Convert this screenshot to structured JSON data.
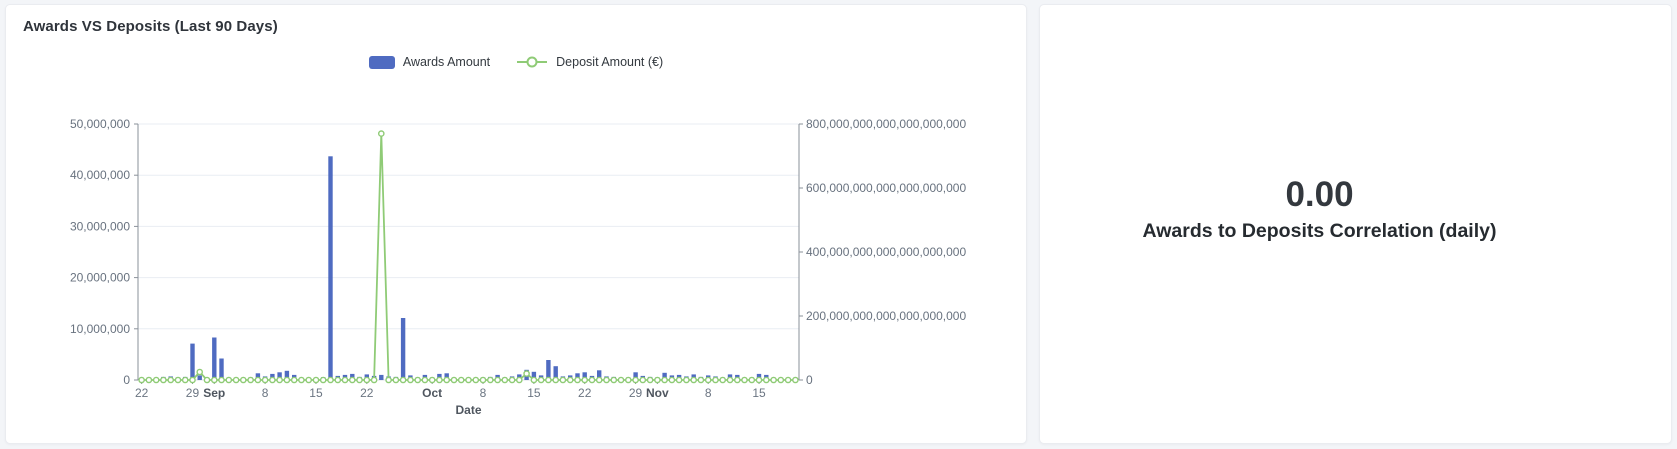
{
  "left_card": {
    "title": "Awards VS Deposits (Last 90 Days)",
    "legend": [
      {
        "label": "Awards Amount",
        "type": "bar",
        "color": "#4f6bc1"
      },
      {
        "label": "Deposit Amount (€)",
        "type": "line",
        "color": "#8fcb76"
      }
    ]
  },
  "right_card": {
    "value": "0.00",
    "label": "Awards to Deposits Correlation (daily)"
  },
  "chart_data": {
    "type": "combo-bar-line-dual-axis",
    "title": "Awards VS Deposits (Last 90 Days)",
    "xlabel": "Date",
    "grid": true,
    "legend_position": "top-center",
    "dates": [
      "Aug 22",
      "Aug 23",
      "Aug 24",
      "Aug 25",
      "Aug 26",
      "Aug 27",
      "Aug 28",
      "Aug 29",
      "Aug 30",
      "Aug 31",
      "Sep 1",
      "Sep 2",
      "Sep 3",
      "Sep 4",
      "Sep 5",
      "Sep 6",
      "Sep 7",
      "Sep 8",
      "Sep 9",
      "Sep 10",
      "Sep 11",
      "Sep 12",
      "Sep 13",
      "Sep 14",
      "Sep 15",
      "Sep 16",
      "Sep 17",
      "Sep 18",
      "Sep 19",
      "Sep 20",
      "Sep 21",
      "Sep 22",
      "Sep 23",
      "Sep 24",
      "Sep 25",
      "Sep 26",
      "Sep 27",
      "Sep 28",
      "Sep 29",
      "Sep 30",
      "Oct 1",
      "Oct 2",
      "Oct 3",
      "Oct 4",
      "Oct 5",
      "Oct 6",
      "Oct 7",
      "Oct 8",
      "Oct 9",
      "Oct 10",
      "Oct 11",
      "Oct 12",
      "Oct 13",
      "Oct 14",
      "Oct 15",
      "Oct 16",
      "Oct 17",
      "Oct 18",
      "Oct 19",
      "Oct 20",
      "Oct 21",
      "Oct 22",
      "Oct 23",
      "Oct 24",
      "Oct 25",
      "Oct 26",
      "Oct 27",
      "Oct 28",
      "Oct 29",
      "Oct 30",
      "Oct 31",
      "Nov 1",
      "Nov 2",
      "Nov 3",
      "Nov 4",
      "Nov 5",
      "Nov 6",
      "Nov 7",
      "Nov 8",
      "Nov 9",
      "Nov 10",
      "Nov 11",
      "Nov 12",
      "Nov 13",
      "Nov 14",
      "Nov 15",
      "Nov 16",
      "Nov 17",
      "Nov 18",
      "Nov 19",
      "Nov 20"
    ],
    "series": [
      {
        "name": "Awards Amount",
        "type": "bar",
        "axis": "left",
        "color": "#4f6bc1",
        "values": [
          400000,
          500000,
          300000,
          600000,
          700000,
          500000,
          600000,
          7100000,
          900000,
          400000,
          8300000,
          4200000,
          400000,
          300000,
          250000,
          500000,
          1300000,
          700000,
          1200000,
          1500000,
          1800000,
          1000000,
          400000,
          300000,
          350000,
          550000,
          43700000,
          800000,
          1000000,
          1200000,
          600000,
          1100000,
          800000,
          1000000,
          700000,
          600000,
          12100000,
          900000,
          500000,
          1000000,
          500000,
          1200000,
          1300000,
          400000,
          350000,
          300000,
          450000,
          500000,
          600000,
          1000000,
          500000,
          700000,
          1100000,
          2000000,
          1600000,
          900000,
          3900000,
          2700000,
          700000,
          900000,
          1300000,
          1500000,
          800000,
          1900000,
          700000,
          600000,
          400000,
          500000,
          1500000,
          800000,
          600000,
          500000,
          1400000,
          900000,
          1000000,
          700000,
          1100000,
          600000,
          900000,
          700000,
          500000,
          1100000,
          1000000,
          400000,
          500000,
          1200000,
          1000000,
          400000,
          300000,
          350000,
          300000
        ]
      },
      {
        "name": "Deposit Amount (€)",
        "type": "line",
        "axis": "right",
        "color": "#8fcb76",
        "values": [
          0,
          0,
          0,
          0,
          0,
          0,
          0,
          0,
          25000000000000000000,
          0,
          0,
          0,
          0,
          0,
          0,
          0,
          0,
          0,
          0,
          0,
          0,
          0,
          0,
          0,
          0,
          0,
          0,
          0,
          0,
          0,
          0,
          0,
          0,
          770000000000000000000,
          0,
          0,
          0,
          0,
          0,
          0,
          0,
          0,
          0,
          0,
          0,
          0,
          0,
          0,
          0,
          0,
          0,
          0,
          0,
          20000000000000000000,
          0,
          0,
          0,
          0,
          0,
          0,
          0,
          0,
          0,
          0,
          0,
          0,
          0,
          0,
          0,
          0,
          0,
          0,
          0,
          0,
          0,
          0,
          0,
          0,
          0,
          0,
          0,
          0,
          0,
          0,
          0,
          0,
          0,
          0,
          0,
          0,
          0
        ]
      }
    ],
    "left_axis": {
      "min": 0,
      "max": 50000000,
      "ticks": [
        {
          "value": 0,
          "label": "0"
        },
        {
          "value": 10000000,
          "label": "10,000,000"
        },
        {
          "value": 20000000,
          "label": "20,000,000"
        },
        {
          "value": 30000000,
          "label": "30,000,000"
        },
        {
          "value": 40000000,
          "label": "40,000,000"
        },
        {
          "value": 50000000,
          "label": "50,000,000"
        }
      ]
    },
    "right_axis": {
      "min": 0,
      "max": 800000000000000000000,
      "ticks": [
        {
          "value": 0,
          "label": "0"
        },
        {
          "value": 200000000000000000000,
          "label": "200,000,000,000,000,000,000"
        },
        {
          "value": 400000000000000000000,
          "label": "400,000,000,000,000,000,000"
        },
        {
          "value": 600000000000000000000,
          "label": "600,000,000,000,000,000,000"
        },
        {
          "value": 800000000000000000000,
          "label": "800,000,000,000,000,000,000"
        }
      ]
    },
    "x_ticks": [
      {
        "index": 0,
        "label": "22",
        "bold": false
      },
      {
        "index": 7,
        "label": "29",
        "bold": false
      },
      {
        "index": 10,
        "label": "Sep",
        "bold": true
      },
      {
        "index": 17,
        "label": "8",
        "bold": false
      },
      {
        "index": 24,
        "label": "15",
        "bold": false
      },
      {
        "index": 31,
        "label": "22",
        "bold": false
      },
      {
        "index": 40,
        "label": "Oct",
        "bold": true
      },
      {
        "index": 47,
        "label": "8",
        "bold": false
      },
      {
        "index": 54,
        "label": "15",
        "bold": false
      },
      {
        "index": 61,
        "label": "22",
        "bold": false
      },
      {
        "index": 68,
        "label": "29",
        "bold": false
      },
      {
        "index": 71,
        "label": "Nov",
        "bold": true
      },
      {
        "index": 78,
        "label": "8",
        "bold": false
      },
      {
        "index": 85,
        "label": "15",
        "bold": false
      }
    ]
  }
}
